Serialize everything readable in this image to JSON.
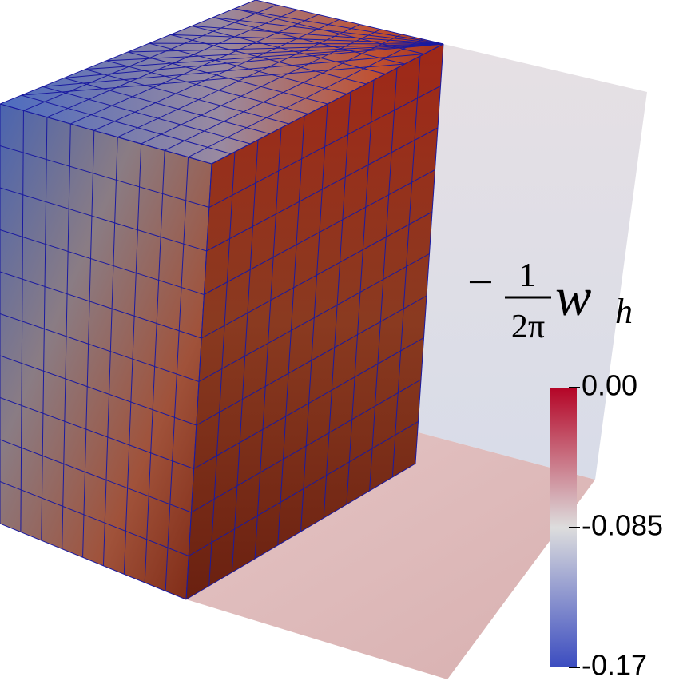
{
  "colorbar": {
    "title": {
      "sign": "−",
      "numerator": "1",
      "denominator": "2π",
      "symbol": "w",
      "subscript": "h"
    },
    "range": [
      -0.17,
      0
    ],
    "ticks": [
      {
        "value": 0,
        "label": "0.00"
      },
      {
        "value": -0.085,
        "label": "-0.085"
      },
      {
        "value": -0.17,
        "label": "-0.17"
      }
    ],
    "colors": [
      "#b40426",
      "#dddddd",
      "#3b4cc0"
    ]
  }
}
